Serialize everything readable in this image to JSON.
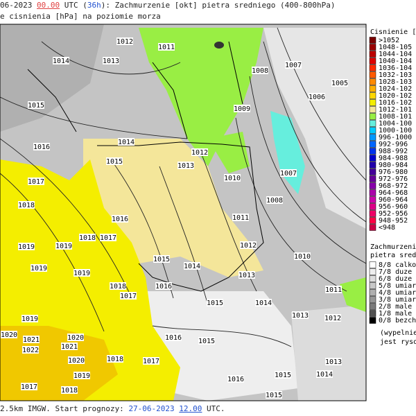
{
  "header": {
    "line1": [
      "06-2023 ",
      "00.00",
      " UTC (",
      "36h",
      "): Zachmurzenie [okt] pietra sredniego (400-800hPa)"
    ],
    "line2": "e cisnienia [hPa] na poziomie morza"
  },
  "footer": [
    "2.5km IMGW. Start prognozy: ",
    "27-06-2023",
    " ",
    "12.00",
    " UTC."
  ],
  "pressure_legend": {
    "title": "Cisnienie [hP",
    "items": [
      {
        "label": ">1052",
        "color": "#7a0000"
      },
      {
        "label": "1048-105",
        "color": "#9a0000"
      },
      {
        "label": "1044-104",
        "color": "#bb0000"
      },
      {
        "label": "1040-104",
        "color": "#dd0000"
      },
      {
        "label": "1036-104",
        "color": "#ff2a00"
      },
      {
        "label": "1032-103",
        "color": "#ff5a00"
      },
      {
        "label": "1028-103",
        "color": "#ff8a00"
      },
      {
        "label": "1024-102",
        "color": "#ffb000"
      },
      {
        "label": "1020-102",
        "color": "#ffd800"
      },
      {
        "label": "1016-102",
        "color": "#f4ee00"
      },
      {
        "label": "1012-101",
        "color": "#f4e69a"
      },
      {
        "label": "1008-101",
        "color": "#99ee44"
      },
      {
        "label": "1004-100",
        "color": "#66eedd"
      },
      {
        "label": "1000-100",
        "color": "#00ccff"
      },
      {
        "label": "996-1000",
        "color": "#0099ff"
      },
      {
        "label": "992-996",
        "color": "#0066ff"
      },
      {
        "label": "988-992",
        "color": "#0033ee"
      },
      {
        "label": "984-988",
        "color": "#0000cc"
      },
      {
        "label": "980-984",
        "color": "#2200aa"
      },
      {
        "label": "976-980",
        "color": "#440099"
      },
      {
        "label": "972-976",
        "color": "#660099"
      },
      {
        "label": "968-972",
        "color": "#8800aa"
      },
      {
        "label": "964-968",
        "color": "#aa00aa"
      },
      {
        "label": "960-964",
        "color": "#cc00aa"
      },
      {
        "label": "956-960",
        "color": "#dd0088"
      },
      {
        "label": "952-956",
        "color": "#ee0066"
      },
      {
        "label": "948-952",
        "color": "#ff0044"
      },
      {
        "label": "<948",
        "color": "#cc0044"
      }
    ]
  },
  "cloud_legend": {
    "title": [
      "Zachmurzenie",
      "pietra sredni"
    ],
    "items": [
      {
        "label": "8/8 calkow",
        "color": "#ffffff"
      },
      {
        "label": "7/8 duze",
        "color": "#eeeeee"
      },
      {
        "label": "6/8 duze",
        "color": "#dddddd"
      },
      {
        "label": "5/8 umiar",
        "color": "#c8c8c8"
      },
      {
        "label": "4/8 umiar",
        "color": "#b0b0b0"
      },
      {
        "label": "3/8 umiar",
        "color": "#969696"
      },
      {
        "label": "2/8 male",
        "color": "#7a7a7a"
      },
      {
        "label": "1/8 male",
        "color": "#505050"
      },
      {
        "label": "0/8 bezch",
        "color": "#000000"
      }
    ],
    "note": [
      "(wypelnieni",
      "jest rysowa"
    ]
  },
  "isobar_labels": [
    "1012",
    "1011",
    "1014",
    "1013",
    "1008",
    "1007",
    "1005",
    "1006",
    "1015",
    "1009",
    "1016",
    "1014",
    "1012",
    "1015",
    "1013",
    "1010",
    "1007",
    "1017",
    "1008",
    "1018",
    "1016",
    "1011",
    "1018",
    "1017",
    "1012",
    "1019",
    "1019",
    "1010",
    "1015",
    "1014",
    "1013",
    "1019",
    "1019",
    "1011",
    "1018",
    "1016",
    "1017",
    "1015",
    "1014",
    "1019",
    "1012",
    "1013",
    "1016",
    "1015",
    "1020",
    "1020",
    "1021",
    "1021",
    "1022",
    "1018",
    "1017",
    "1020",
    "1013",
    "1016",
    "1015",
    "1014",
    "1019",
    "1018",
    "1017",
    "1015"
  ]
}
